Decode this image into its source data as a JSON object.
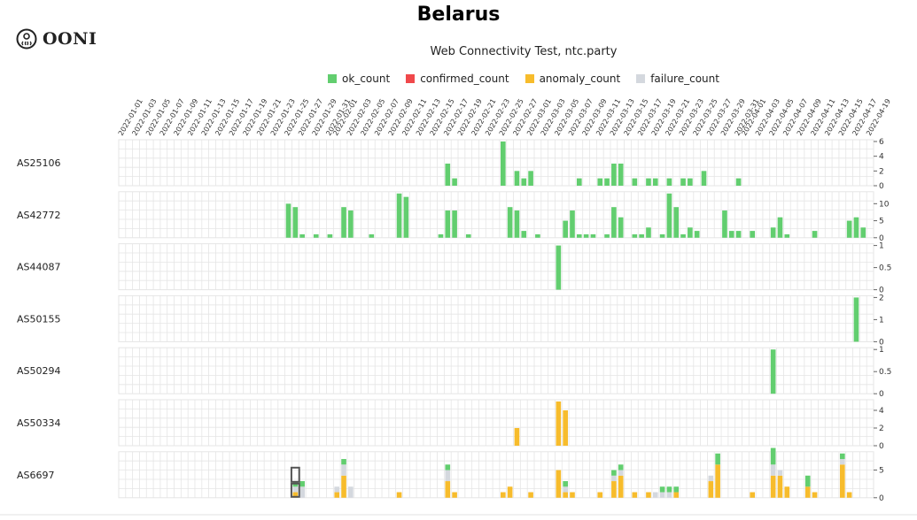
{
  "header": {
    "title": "Belarus",
    "subtitle": "Web Connectivity Test, ntc.party",
    "logo_text": "OONI",
    "logo_icon": "ooni-octopus-icon"
  },
  "colors": {
    "ok_count": "#62ce6f",
    "confirmed_count": "#f0484b",
    "anomaly_count": "#f7bc2c",
    "failure_count": "#d4d8de",
    "grid": "#e5e5e5",
    "highlight": "#555555"
  },
  "legend": [
    {
      "key": "ok_count",
      "label": "ok_count"
    },
    {
      "key": "confirmed_count",
      "label": "confirmed_count"
    },
    {
      "key": "anomaly_count",
      "label": "anomaly_count"
    },
    {
      "key": "failure_count",
      "label": "failure_count"
    }
  ],
  "chart_data": {
    "type": "bar",
    "stacked": true,
    "x_start": "2022-01-01",
    "x_end": "2022-04-19",
    "x_tick_labels": [
      "2022-01-01",
      "2022-01-03",
      "2022-01-05",
      "2022-01-07",
      "2022-01-09",
      "2022-01-11",
      "2022-01-13",
      "2022-01-15",
      "2022-01-17",
      "2022-01-19",
      "2022-01-21",
      "2022-01-23",
      "2022-01-25",
      "2022-01-27",
      "2022-01-29",
      "2022-01-31",
      "2022-02-01",
      "2022-02-03",
      "2022-02-05",
      "2022-02-07",
      "2022-02-09",
      "2022-02-11",
      "2022-02-13",
      "2022-02-15",
      "2022-02-17",
      "2022-02-19",
      "2022-02-21",
      "2022-02-23",
      "2022-02-25",
      "2022-02-27",
      "2022-03-01",
      "2022-03-03",
      "2022-03-05",
      "2022-03-07",
      "2022-03-09",
      "2022-03-11",
      "2022-03-13",
      "2022-03-15",
      "2022-03-17",
      "2022-03-19",
      "2022-03-21",
      "2022-03-23",
      "2022-03-25",
      "2022-03-27",
      "2022-03-29",
      "2022-03-31",
      "2022-04-01",
      "2022-04-03",
      "2022-04-05",
      "2022-04-07",
      "2022-04-09",
      "2022-04-11",
      "2022-04-13",
      "2022-04-15",
      "2022-04-17",
      "2022-04-19"
    ],
    "series_names": [
      "ok_count",
      "confirmed_count",
      "anomaly_count",
      "failure_count"
    ],
    "legend_position": "top-center",
    "grid": true,
    "highlight_date": "2022-01-26",
    "rows": [
      {
        "label": "AS25106",
        "ymax": 6,
        "yticks": [
          "6",
          "4",
          "2",
          "0"
        ],
        "data": [
          {
            "date": "2022-02-17",
            "ok": 3
          },
          {
            "date": "2022-02-18",
            "ok": 1
          },
          {
            "date": "2022-02-25",
            "ok": 6
          },
          {
            "date": "2022-02-27",
            "ok": 2
          },
          {
            "date": "2022-02-28",
            "ok": 1
          },
          {
            "date": "2022-03-01",
            "ok": 2
          },
          {
            "date": "2022-03-08",
            "ok": 1
          },
          {
            "date": "2022-03-11",
            "ok": 1
          },
          {
            "date": "2022-03-12",
            "ok": 1
          },
          {
            "date": "2022-03-13",
            "ok": 3
          },
          {
            "date": "2022-03-14",
            "ok": 3
          },
          {
            "date": "2022-03-16",
            "ok": 1
          },
          {
            "date": "2022-03-18",
            "ok": 1
          },
          {
            "date": "2022-03-19",
            "ok": 1
          },
          {
            "date": "2022-03-21",
            "ok": 1
          },
          {
            "date": "2022-03-23",
            "ok": 1
          },
          {
            "date": "2022-03-24",
            "ok": 1
          },
          {
            "date": "2022-03-26",
            "ok": 2
          },
          {
            "date": "2022-03-31",
            "ok": 1
          }
        ]
      },
      {
        "label": "AS42772",
        "ymax": 13,
        "yticks": [
          "10",
          "5",
          "0"
        ],
        "data": [
          {
            "date": "2022-01-25",
            "ok": 10
          },
          {
            "date": "2022-01-26",
            "ok": 9
          },
          {
            "date": "2022-01-27",
            "ok": 1
          },
          {
            "date": "2022-01-29",
            "ok": 1
          },
          {
            "date": "2022-01-31",
            "ok": 1
          },
          {
            "date": "2022-02-02",
            "ok": 9
          },
          {
            "date": "2022-02-03",
            "ok": 8
          },
          {
            "date": "2022-02-06",
            "ok": 1
          },
          {
            "date": "2022-02-10",
            "ok": 13
          },
          {
            "date": "2022-02-11",
            "ok": 12
          },
          {
            "date": "2022-02-16",
            "ok": 1
          },
          {
            "date": "2022-02-17",
            "ok": 8
          },
          {
            "date": "2022-02-18",
            "ok": 8
          },
          {
            "date": "2022-02-20",
            "ok": 1
          },
          {
            "date": "2022-02-26",
            "ok": 9
          },
          {
            "date": "2022-02-27",
            "ok": 8
          },
          {
            "date": "2022-02-28",
            "ok": 2
          },
          {
            "date": "2022-03-02",
            "ok": 1
          },
          {
            "date": "2022-03-06",
            "ok": 5
          },
          {
            "date": "2022-03-07",
            "ok": 8
          },
          {
            "date": "2022-03-08",
            "ok": 1
          },
          {
            "date": "2022-03-09",
            "ok": 1
          },
          {
            "date": "2022-03-10",
            "ok": 1
          },
          {
            "date": "2022-03-12",
            "ok": 1
          },
          {
            "date": "2022-03-13",
            "ok": 9
          },
          {
            "date": "2022-03-14",
            "ok": 6
          },
          {
            "date": "2022-03-16",
            "ok": 1
          },
          {
            "date": "2022-03-17",
            "ok": 1
          },
          {
            "date": "2022-03-18",
            "ok": 3
          },
          {
            "date": "2022-03-20",
            "ok": 1
          },
          {
            "date": "2022-03-21",
            "ok": 13
          },
          {
            "date": "2022-03-22",
            "ok": 9
          },
          {
            "date": "2022-03-23",
            "ok": 1
          },
          {
            "date": "2022-03-24",
            "ok": 3
          },
          {
            "date": "2022-03-25",
            "ok": 2
          },
          {
            "date": "2022-03-29",
            "ok": 8
          },
          {
            "date": "2022-03-30",
            "ok": 2
          },
          {
            "date": "2022-03-31",
            "ok": 2
          },
          {
            "date": "2022-04-02",
            "ok": 2
          },
          {
            "date": "2022-04-05",
            "ok": 3
          },
          {
            "date": "2022-04-06",
            "ok": 6
          },
          {
            "date": "2022-04-07",
            "ok": 1
          },
          {
            "date": "2022-04-11",
            "ok": 2
          },
          {
            "date": "2022-04-16",
            "ok": 5
          },
          {
            "date": "2022-04-17",
            "ok": 6
          },
          {
            "date": "2022-04-18",
            "ok": 3
          }
        ]
      },
      {
        "label": "AS44087",
        "ymax": 1,
        "yticks": [
          "1",
          "0.5",
          "0"
        ],
        "data": [
          {
            "date": "2022-03-05",
            "ok": 1
          }
        ]
      },
      {
        "label": "AS50155",
        "ymax": 2,
        "yticks": [
          "2",
          "1",
          "0"
        ],
        "data": [
          {
            "date": "2022-04-17",
            "ok": 2
          }
        ]
      },
      {
        "label": "AS50294",
        "ymax": 1,
        "yticks": [
          "1",
          "0.5",
          "0"
        ],
        "data": [
          {
            "date": "2022-04-05",
            "ok": 1
          }
        ]
      },
      {
        "label": "AS50334",
        "ymax": 5,
        "yticks": [
          "4",
          "2",
          "0"
        ],
        "data": [
          {
            "date": "2022-02-27",
            "anomaly": 2
          },
          {
            "date": "2022-03-05",
            "anomaly": 5
          },
          {
            "date": "2022-03-06",
            "anomaly": 4
          }
        ]
      },
      {
        "label": "AS6697",
        "ymax": 8,
        "yticks": [
          "5",
          "0"
        ],
        "data": [
          {
            "date": "2022-01-26",
            "anomaly": 1,
            "failure": 1,
            "ok": 1
          },
          {
            "date": "2022-01-27",
            "failure": 2,
            "ok": 1
          },
          {
            "date": "2022-02-01",
            "anomaly": 1,
            "failure": 1
          },
          {
            "date": "2022-02-02",
            "anomaly": 4,
            "failure": 2,
            "ok": 1
          },
          {
            "date": "2022-02-03",
            "failure": 2
          },
          {
            "date": "2022-02-10",
            "anomaly": 1
          },
          {
            "date": "2022-02-17",
            "anomaly": 3,
            "failure": 2,
            "ok": 1
          },
          {
            "date": "2022-02-18",
            "anomaly": 1
          },
          {
            "date": "2022-02-25",
            "anomaly": 1
          },
          {
            "date": "2022-02-26",
            "anomaly": 2
          },
          {
            "date": "2022-03-01",
            "anomaly": 1
          },
          {
            "date": "2022-03-05",
            "anomaly": 5
          },
          {
            "date": "2022-03-06",
            "anomaly": 1,
            "failure": 1,
            "ok": 1
          },
          {
            "date": "2022-03-07",
            "anomaly": 1
          },
          {
            "date": "2022-03-11",
            "anomaly": 1
          },
          {
            "date": "2022-03-13",
            "anomaly": 3,
            "failure": 1,
            "ok": 1
          },
          {
            "date": "2022-03-14",
            "anomaly": 4,
            "failure": 1,
            "ok": 1
          },
          {
            "date": "2022-03-16",
            "anomaly": 1
          },
          {
            "date": "2022-03-18",
            "anomaly": 1
          },
          {
            "date": "2022-03-19",
            "failure": 1
          },
          {
            "date": "2022-03-20",
            "failure": 1,
            "ok": 1
          },
          {
            "date": "2022-03-21",
            "failure": 1,
            "ok": 1
          },
          {
            "date": "2022-03-22",
            "anomaly": 1,
            "ok": 1
          },
          {
            "date": "2022-03-27",
            "anomaly": 3,
            "failure": 1
          },
          {
            "date": "2022-03-28",
            "anomaly": 6,
            "ok": 2
          },
          {
            "date": "2022-04-02",
            "anomaly": 1
          },
          {
            "date": "2022-04-05",
            "anomaly": 4,
            "failure": 2,
            "ok": 3
          },
          {
            "date": "2022-04-06",
            "anomaly": 4,
            "failure": 1
          },
          {
            "date": "2022-04-07",
            "anomaly": 2
          },
          {
            "date": "2022-04-10",
            "anomaly": 2,
            "ok": 2
          },
          {
            "date": "2022-04-11",
            "anomaly": 1
          },
          {
            "date": "2022-04-15",
            "anomaly": 6,
            "failure": 1,
            "ok": 1
          },
          {
            "date": "2022-04-16",
            "anomaly": 1
          }
        ]
      }
    ]
  }
}
